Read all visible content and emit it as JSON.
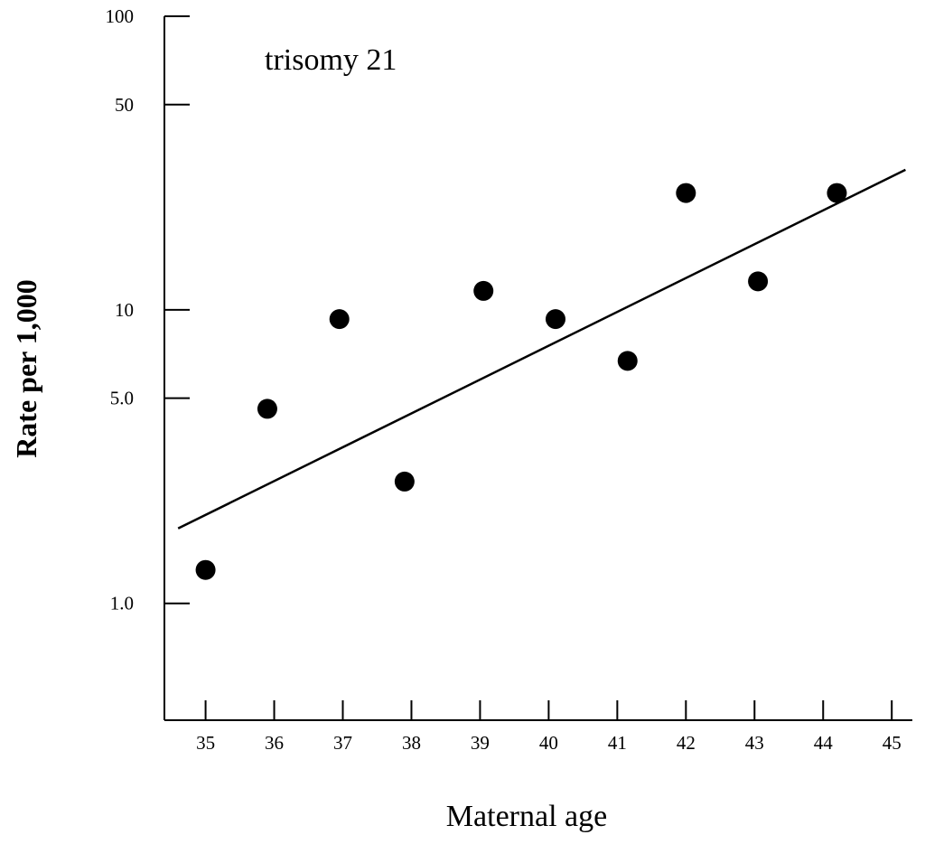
{
  "chart_data": {
    "type": "scatter",
    "title": "",
    "annotation": "trisomy 21",
    "xlabel": "Maternal age",
    "ylabel": "Rate per 1,000",
    "yscale": "log",
    "xlim": [
      34.4,
      45.3
    ],
    "ylim": [
      0.4,
      100
    ],
    "xticks": [
      35,
      36,
      37,
      38,
      39,
      40,
      41,
      42,
      43,
      44,
      45
    ],
    "xtick_labels": [
      "35",
      "36",
      "37",
      "38",
      "39",
      "40",
      "41",
      "42",
      "43",
      "44",
      "45"
    ],
    "yticks": [
      1.0,
      5.0,
      10,
      50,
      100
    ],
    "ytick_labels": [
      "1.0",
      "5.0",
      "10",
      "50",
      "100"
    ],
    "points": [
      {
        "x": 35.0,
        "y": 1.3
      },
      {
        "x": 35.9,
        "y": 4.6
      },
      {
        "x": 36.95,
        "y": 9.3
      },
      {
        "x": 37.9,
        "y": 2.6
      },
      {
        "x": 39.05,
        "y": 11.6
      },
      {
        "x": 40.1,
        "y": 9.3
      },
      {
        "x": 41.15,
        "y": 6.7
      },
      {
        "x": 42.0,
        "y": 25.0
      },
      {
        "x": 43.05,
        "y": 12.5
      },
      {
        "x": 44.2,
        "y": 25.0
      }
    ],
    "trend_line": {
      "x": [
        34.6,
        45.2
      ],
      "y": [
        1.8,
        30.0
      ]
    },
    "grid": false,
    "legend": "none",
    "colors": {
      "marker": "#000000",
      "line": "#000000",
      "axis": "#000000",
      "background": "#ffffff"
    }
  }
}
